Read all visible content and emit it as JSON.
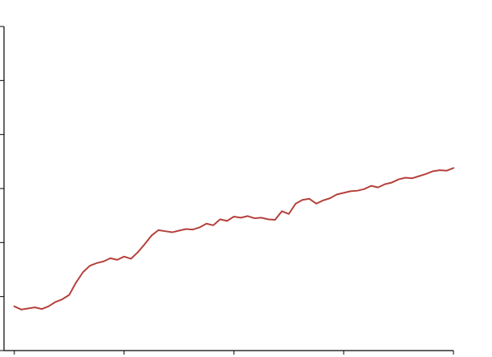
{
  "chart_data": {
    "type": "line",
    "title": "",
    "xlabel": "",
    "ylabel": "",
    "grid": false,
    "legend": "none",
    "xlim": [
      -1.5,
      64
    ],
    "ylim": [
      0,
      60
    ],
    "x_ticks": [
      0,
      16,
      32,
      48,
      64
    ],
    "y_ticks": [
      0,
      10,
      20,
      30,
      40,
      50,
      60
    ],
    "tick_labels_visible": false,
    "series": [
      {
        "color": "#b5403b",
        "x": [
          0,
          1,
          2,
          3,
          4,
          5,
          6,
          7,
          8,
          9,
          10,
          11,
          12,
          13,
          14,
          15,
          16,
          17,
          18,
          19,
          20,
          21,
          22,
          23,
          24,
          25,
          26,
          27,
          28,
          29,
          30,
          31,
          32,
          33,
          34,
          35,
          36,
          37,
          38,
          39,
          40,
          41,
          42,
          43,
          44,
          45,
          46,
          47,
          48,
          49,
          50,
          51,
          52,
          53,
          54,
          55,
          56,
          57,
          58,
          59,
          60,
          61,
          62,
          63,
          64
        ],
        "values": [
          8.2,
          7.6,
          7.8,
          8.0,
          7.7,
          8.2,
          9.0,
          9.5,
          10.3,
          12.6,
          14.5,
          15.7,
          16.2,
          16.5,
          17.1,
          16.8,
          17.4,
          17.0,
          18.2,
          19.7,
          21.3,
          22.3,
          22.1,
          21.9,
          22.2,
          22.5,
          22.4,
          22.8,
          23.5,
          23.2,
          24.3,
          24.0,
          24.8,
          24.6,
          24.9,
          24.5,
          24.6,
          24.3,
          24.2,
          25.8,
          25.3,
          27.2,
          27.9,
          28.1,
          27.2,
          27.8,
          28.2,
          28.9,
          29.2,
          29.5,
          29.6,
          29.9,
          30.5,
          30.2,
          30.8,
          31.1,
          31.7,
          32.0,
          31.9,
          32.3,
          32.7,
          33.2,
          33.4,
          33.3,
          33.8
        ]
      }
    ]
  }
}
